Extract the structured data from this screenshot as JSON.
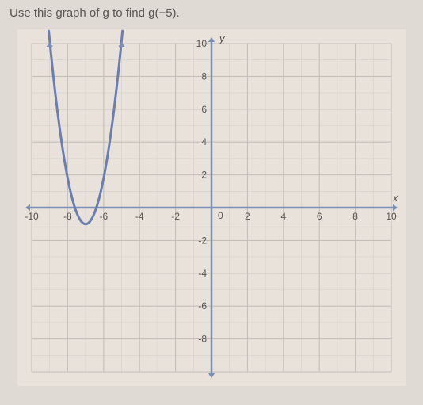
{
  "title": "Use this graph of g to find g(−5).",
  "chart": {
    "type": "line",
    "background_color": "#e8e2db",
    "grid_color": "#c4bfb8",
    "minor_grid_color": "#d5d0c9",
    "axis_color": "#7b8fb5",
    "curve_color": "#6a7eb0",
    "tick_label_color": "#575450",
    "tick_fontsize": 12,
    "xlim": [
      -10,
      10
    ],
    "ylim": [
      -10,
      10
    ],
    "xtick_step": 2,
    "ytick_step": 2,
    "x_ticks": [
      -10,
      -8,
      -6,
      -4,
      -2,
      0,
      2,
      4,
      6,
      8,
      10
    ],
    "y_ticks": [
      -8,
      -6,
      -4,
      -2,
      2,
      4,
      6,
      8,
      10
    ],
    "axis_labels": {
      "x": "x",
      "y": "y"
    },
    "curve": {
      "vertex": [
        -7,
        -1
      ],
      "a": 2.8,
      "points": [
        [
          -9,
          10.2
        ],
        [
          -8.5,
          5.3
        ],
        [
          -8,
          1.8
        ],
        [
          -7.5,
          -0.3
        ],
        [
          -7,
          -1
        ],
        [
          -6.5,
          -0.3
        ],
        [
          -6,
          1.8
        ],
        [
          -5.5,
          5.3
        ],
        [
          -5,
          10.2
        ]
      ]
    },
    "curve_width": 3,
    "axis_width": 2.5
  }
}
